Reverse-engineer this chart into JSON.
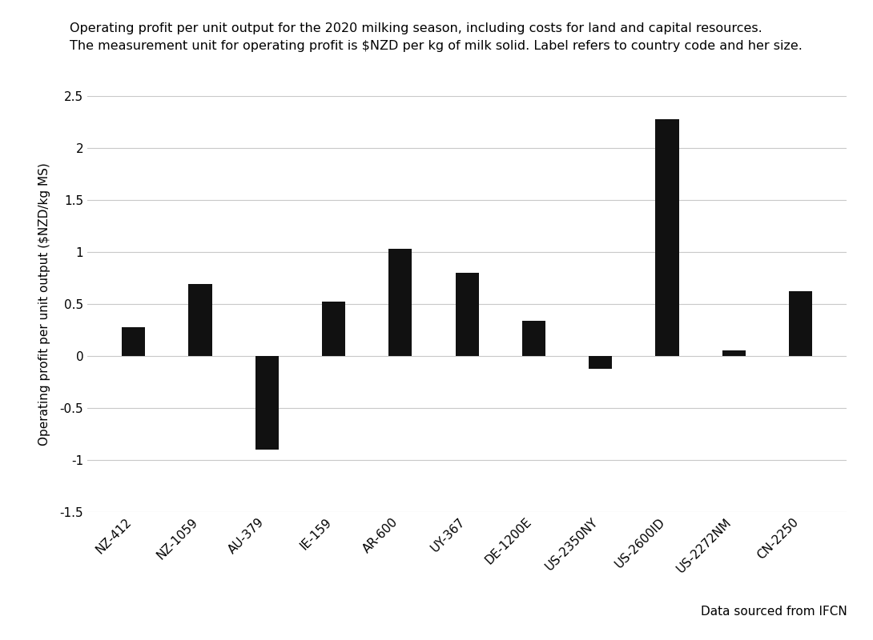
{
  "title_line1": "Operating profit per unit output for the 2020 milking season, including costs for land and capital resources.",
  "title_line2": "The measurement unit for operating profit is $NZD per kg of milk solid. Label refers to country code and her size.",
  "ylabel": "Operating profit per unit output ($NZD/kg MS)",
  "categories": [
    "NZ-412",
    "NZ-1059",
    "AU-379",
    "IE-159",
    "AR-600",
    "UY-367",
    "DE-1200E",
    "US-2350NY",
    "US-2600ID",
    "US-2272NM",
    "CN-2250"
  ],
  "values": [
    0.28,
    0.69,
    -0.9,
    0.52,
    1.03,
    0.8,
    0.34,
    -0.12,
    2.28,
    0.05,
    0.62
  ],
  "bar_color": "#111111",
  "background_color": "#ffffff",
  "ylim": [
    -1.5,
    2.5
  ],
  "yticks": [
    -1.5,
    -1.0,
    -0.5,
    0.0,
    0.5,
    1.0,
    1.5,
    2.0,
    2.5
  ],
  "ytick_labels": [
    "-1.5",
    "-1",
    "-0.5",
    "0",
    "0.5",
    "1",
    "1.5",
    "2",
    "2.5"
  ],
  "grid_color": "#c8c8c8",
  "source_text": "Data sourced from IFCN",
  "title_fontsize": 11.5,
  "ylabel_fontsize": 11,
  "tick_fontsize": 11,
  "source_fontsize": 11,
  "bar_width": 0.35
}
